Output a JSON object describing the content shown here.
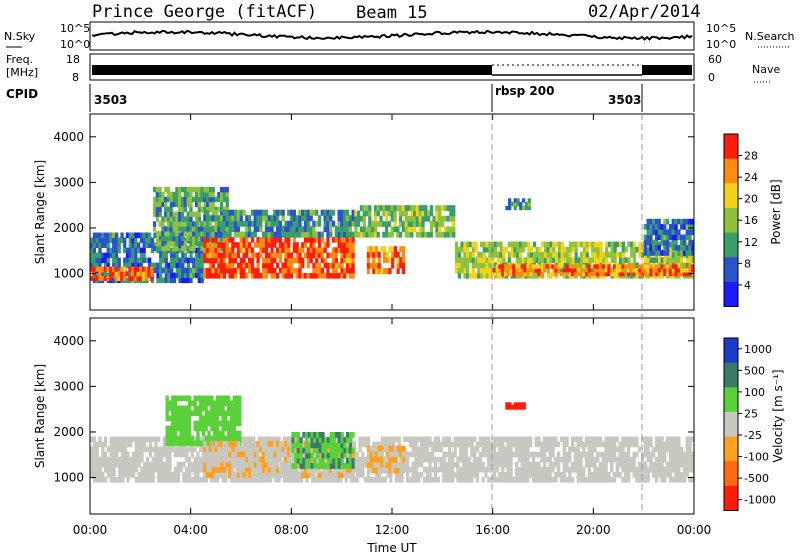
{
  "header": {
    "station": "Prince George (fitACF)",
    "beam": "Beam 15",
    "date": "02/Apr/2014"
  },
  "noise_panel": {
    "left_label": "N.Sky",
    "right_label": "N.Search",
    "left_ticks": [
      "10^5",
      "10^0"
    ],
    "right_ticks": [
      "10^5",
      "10^0"
    ]
  },
  "freq_panel": {
    "left_label_1": "Freq.",
    "left_label_2": "[MHz]",
    "right_label": "Nave",
    "left_ticks": [
      "18",
      "8"
    ],
    "right_ticks": [
      "60",
      "0"
    ]
  },
  "cpid": {
    "label": "CPID",
    "entries": [
      {
        "code": "3503",
        "start_hour": 0
      },
      {
        "code": "rbsp 200",
        "start_hour": 16
      },
      {
        "code": "3503",
        "start_hour": 22
      }
    ]
  },
  "chart_data": [
    {
      "type": "heatmap",
      "title": "",
      "xlabel": "",
      "ylabel": "Slant Range [km]",
      "xlim": [
        0,
        24
      ],
      "ylim": [
        200,
        4500
      ],
      "yticks": [
        1000,
        2000,
        3000,
        4000
      ],
      "colorbar": {
        "label": "Power [dB]",
        "ticks": [
          "4",
          "8",
          "12",
          "16",
          "20",
          "24",
          "28"
        ],
        "range": [
          0,
          30
        ],
        "colors": [
          "#1a1aff",
          "#2a55c8",
          "#3a9e6a",
          "#8ec23e",
          "#f3d21c",
          "#ff8a10",
          "#ff1c0a"
        ]
      },
      "regions": [
        {
          "t0": 0,
          "t1": 4.5,
          "r0": 800,
          "r1": 1900,
          "value": 8
        },
        {
          "t0": 0,
          "t1": 2.5,
          "r0": 850,
          "r1": 1150,
          "value": 26
        },
        {
          "t0": 2.5,
          "t1": 5.5,
          "r0": 1500,
          "r1": 2900,
          "value": 12
        },
        {
          "t0": 4.5,
          "t1": 10.5,
          "r0": 900,
          "r1": 1800,
          "value": 26
        },
        {
          "t0": 4.5,
          "t1": 10.5,
          "r0": 1800,
          "r1": 2400,
          "value": 10
        },
        {
          "t0": 10.5,
          "t1": 14.5,
          "r0": 1800,
          "r1": 2500,
          "value": 14
        },
        {
          "t0": 11,
          "t1": 12.5,
          "r0": 1000,
          "r1": 1600,
          "value": 24
        },
        {
          "t0": 14.5,
          "t1": 24,
          "r0": 900,
          "r1": 1700,
          "value": 16
        },
        {
          "t0": 16,
          "t1": 24,
          "r0": 950,
          "r1": 1200,
          "value": 24
        },
        {
          "t0": 16.5,
          "t1": 17.5,
          "r0": 2400,
          "r1": 2650,
          "value": 10
        },
        {
          "t0": 22,
          "t1": 24,
          "r0": 1400,
          "r1": 2200,
          "value": 8
        }
      ]
    },
    {
      "type": "heatmap",
      "title": "",
      "xlabel": "Time UT",
      "ylabel": "Slant Range [km]",
      "xlim": [
        0,
        24
      ],
      "ylim": [
        200,
        4500
      ],
      "yticks": [
        1000,
        2000,
        3000,
        4000
      ],
      "xticks": [
        "00:00",
        "04:00",
        "08:00",
        "12:00",
        "16:00",
        "20:00",
        "00:00"
      ],
      "colorbar": {
        "label": "Velocity [m s⁻¹]",
        "ticks": [
          "1000",
          "500",
          "100",
          "25",
          "-25",
          "-100",
          "-500",
          "-1000"
        ],
        "range": [
          -1000,
          1000
        ],
        "colors": [
          "#1a3cc8",
          "#3a7a6a",
          "#5ad03a",
          "#c8c8c0",
          "#ffa020",
          "#ff6a10",
          "#ff1c0a"
        ]
      },
      "regions": [
        {
          "t0": 0,
          "t1": 24,
          "r0": 900,
          "r1": 1900,
          "value": 0
        },
        {
          "t0": 3,
          "t1": 6,
          "r0": 1700,
          "r1": 2800,
          "value": 300
        },
        {
          "t0": 4.5,
          "t1": 10.5,
          "r0": 1000,
          "r1": 1800,
          "value": -100
        },
        {
          "t0": 8,
          "t1": 10.5,
          "r0": 1200,
          "r1": 2000,
          "value": 400
        },
        {
          "t0": 11,
          "t1": 12.5,
          "r0": 1100,
          "r1": 1700,
          "value": -150
        },
        {
          "t0": 16.5,
          "t1": 17.3,
          "r0": 2500,
          "r1": 2650,
          "value": -900
        }
      ]
    }
  ]
}
